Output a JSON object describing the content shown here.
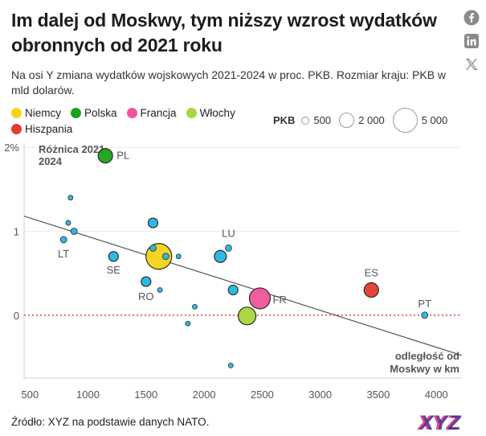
{
  "title": "Im dalej od Moskwy, tym niższy wzrost wydatków obronnych od 2021 roku",
  "subtitle": "Na osi Y zmiana wydatków wojskowych 2021-2024 w proc. PKB. Rozmiar kraju: PKB w mld dolarów.",
  "legend": {
    "items": [
      {
        "label": "Niemcy",
        "color": "#f7d417"
      },
      {
        "label": "Polska",
        "color": "#1aa31a"
      },
      {
        "label": "Francja",
        "color": "#f0559b"
      },
      {
        "label": "Włochy",
        "color": "#a6d63a"
      },
      {
        "label": "Hiszpania",
        "color": "#e33b2e"
      }
    ],
    "size_label": "PKB",
    "sizes": [
      "500",
      "2 000",
      "5 000"
    ]
  },
  "source": "Źródło: XYZ na podstawie danych NATO.",
  "logo_text": "XYZ",
  "icons": [
    "facebook-icon",
    "linkedin-icon",
    "x-icon"
  ],
  "chart_data": {
    "type": "scatter",
    "ylabel": "Różnica 2021-2024",
    "xlabel": "odległość od Moskwy w km",
    "xlim": [
      450,
      4220
    ],
    "ylim": [
      -0.75,
      2.05
    ],
    "xticks": [
      500,
      1000,
      1500,
      2000,
      2500,
      3000,
      3500,
      4000
    ],
    "yticks": [
      {
        "v": 2,
        "label": "2%"
      },
      {
        "v": 1,
        "label": "1"
      },
      {
        "v": 0,
        "label": "0"
      }
    ],
    "zero_line_color": "#e8553f",
    "default_color": "#22b5e6",
    "trend": {
      "x1": 450,
      "y1": 1.18,
      "x2": 4220,
      "y2": -0.48
    },
    "points": [
      {
        "x": 1150,
        "y": 1.9,
        "size": "m",
        "color": "#1aa31a",
        "label": "PL"
      },
      {
        "x": 1610,
        "y": 0.7,
        "size": "xl",
        "color": "#f7d417",
        "label": ""
      },
      {
        "x": 2480,
        "y": 0.2,
        "size": "l",
        "color": "#f0559b",
        "label": "FR"
      },
      {
        "x": 2370,
        "y": -0.01,
        "size": "ml",
        "color": "#a6d63a",
        "label": ""
      },
      {
        "x": 3440,
        "y": 0.3,
        "size": "m",
        "color": "#e33b2e",
        "label": "ES"
      },
      {
        "x": 3900,
        "y": 0.0,
        "size": "xs",
        "color": "#22b5e6",
        "label": "PT"
      },
      {
        "x": 790,
        "y": 0.9,
        "size": "xs",
        "color": "#22b5e6",
        "label": "LT"
      },
      {
        "x": 1220,
        "y": 0.7,
        "size": "s",
        "color": "#22b5e6",
        "label": "SE"
      },
      {
        "x": 1500,
        "y": 0.4,
        "size": "s",
        "color": "#22b5e6",
        "label": "RO"
      },
      {
        "x": 2210,
        "y": 0.8,
        "size": "xs",
        "color": "#22b5e6",
        "label": "LU"
      },
      {
        "x": 2140,
        "y": 0.7,
        "size": "sm",
        "color": "#22b5e6",
        "label": ""
      },
      {
        "x": 2250,
        "y": 0.3,
        "size": "s",
        "color": "#22b5e6",
        "label": ""
      },
      {
        "x": 850,
        "y": 1.4,
        "size": "xxs",
        "color": "#22b5e6",
        "label": ""
      },
      {
        "x": 830,
        "y": 1.1,
        "size": "xxs",
        "color": "#22b5e6",
        "label": ""
      },
      {
        "x": 880,
        "y": 1.0,
        "size": "xs",
        "color": "#22b5e6",
        "label": ""
      },
      {
        "x": 1560,
        "y": 1.1,
        "size": "s",
        "color": "#22b5e6",
        "label": ""
      },
      {
        "x": 1560,
        "y": 0.8,
        "size": "xs",
        "color": "#22b5e6",
        "label": ""
      },
      {
        "x": 1670,
        "y": 0.7,
        "size": "xs",
        "color": "#22b5e6",
        "label": ""
      },
      {
        "x": 1780,
        "y": 0.7,
        "size": "xxs",
        "color": "#22b5e6",
        "label": ""
      },
      {
        "x": 1620,
        "y": 0.3,
        "size": "xxs",
        "color": "#22b5e6",
        "label": ""
      },
      {
        "x": 1920,
        "y": 0.1,
        "size": "xxs",
        "color": "#22b5e6",
        "label": ""
      },
      {
        "x": 1860,
        "y": -0.1,
        "size": "xxs",
        "color": "#22b5e6",
        "label": ""
      },
      {
        "x": 2230,
        "y": -0.6,
        "size": "xxs",
        "color": "#22b5e6",
        "label": ""
      }
    ]
  }
}
